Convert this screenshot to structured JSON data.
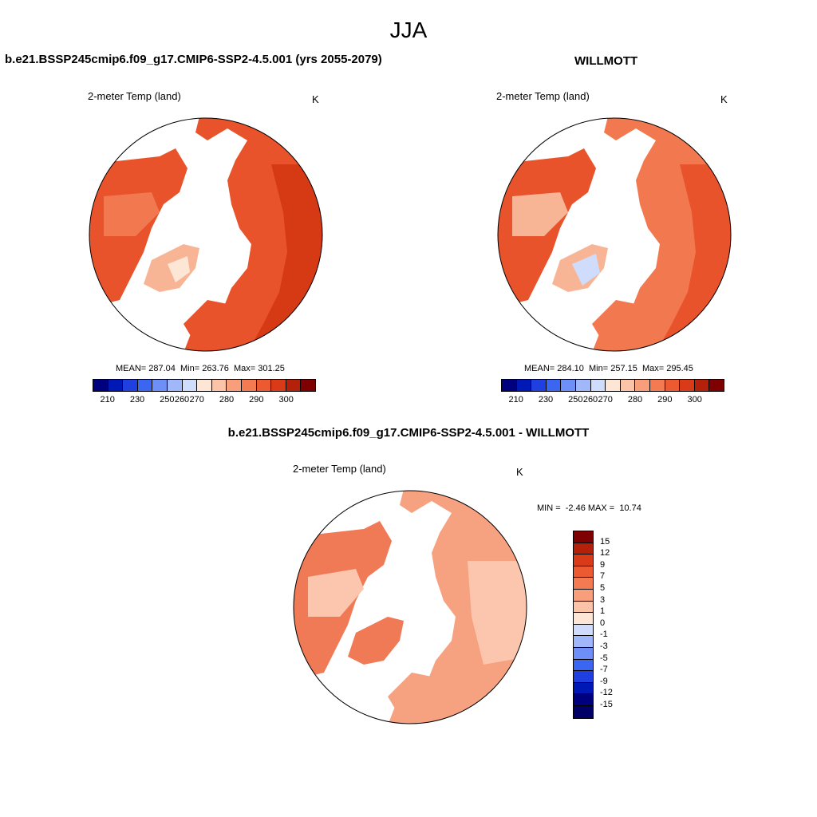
{
  "figure": {
    "title": "JJA"
  },
  "panels": {
    "left": {
      "title": "b.e21.BSSP245cmip6.f09_g17.CMIP6-SSP2-4.5.001 (yrs 2055-2079)",
      "variable": "2-meter Temp (land)",
      "units": "K",
      "stats": "MEAN= 287.04  Min= 263.76  Max= 301.25"
    },
    "right": {
      "title": "WILLMOTT",
      "variable": "2-meter Temp (land)",
      "units": "K",
      "stats": "MEAN= 284.10  Min= 257.15  Max= 295.45"
    },
    "diff": {
      "title": "b.e21.BSSP245cmip6.f09_g17.CMIP6-SSP2-4.5.001 - WILLMOTT",
      "variable": "2-meter Temp (land)",
      "units": "K",
      "minmax": "MIN =  -2.46 MAX =  10.74"
    }
  },
  "colorbars": {
    "absolute": {
      "tick_labels": [
        "210",
        "230",
        "250",
        "260",
        "270",
        "280",
        "290",
        "300"
      ],
      "colors": [
        "#00007f",
        "#0018b5",
        "#1f3fe0",
        "#3b66f2",
        "#6f8ff8",
        "#a0b8fa",
        "#cfdcfb",
        "#fde6d6",
        "#fbc4a8",
        "#f89e7a",
        "#f47a52",
        "#ec5a32",
        "#d93a17",
        "#b5200b",
        "#7f0000"
      ]
    },
    "difference": {
      "tick_labels": [
        "15",
        "12",
        "9",
        "7",
        "5",
        "3",
        "1",
        "0",
        "-1",
        "-3",
        "-5",
        "-7",
        "-9",
        "-12",
        "-15"
      ],
      "colors": [
        "#7f0000",
        "#b5200b",
        "#d93a17",
        "#ec5a32",
        "#f47a52",
        "#f89e7a",
        "#fbc4a8",
        "#fde6d6",
        "#cfdcfb",
        "#a0b8fa",
        "#6f8ff8",
        "#3b66f2",
        "#1f3fe0",
        "#0018b5",
        "#00007f",
        "#000066"
      ]
    }
  },
  "map_colors": {
    "abs_warm": "#e8532b",
    "abs_hot": "#d63a14",
    "abs_mild": "#f2794f",
    "abs_cool": "#f7b596",
    "ice_cool": "#cfdcfb",
    "diff_main": "#f6a281",
    "diff_light": "#fbc6ad",
    "diff_warm": "#ef7a55",
    "ocean": "#ffffff",
    "coast": "#000000"
  },
  "icons": [
    "polar-stereographic-map"
  ]
}
